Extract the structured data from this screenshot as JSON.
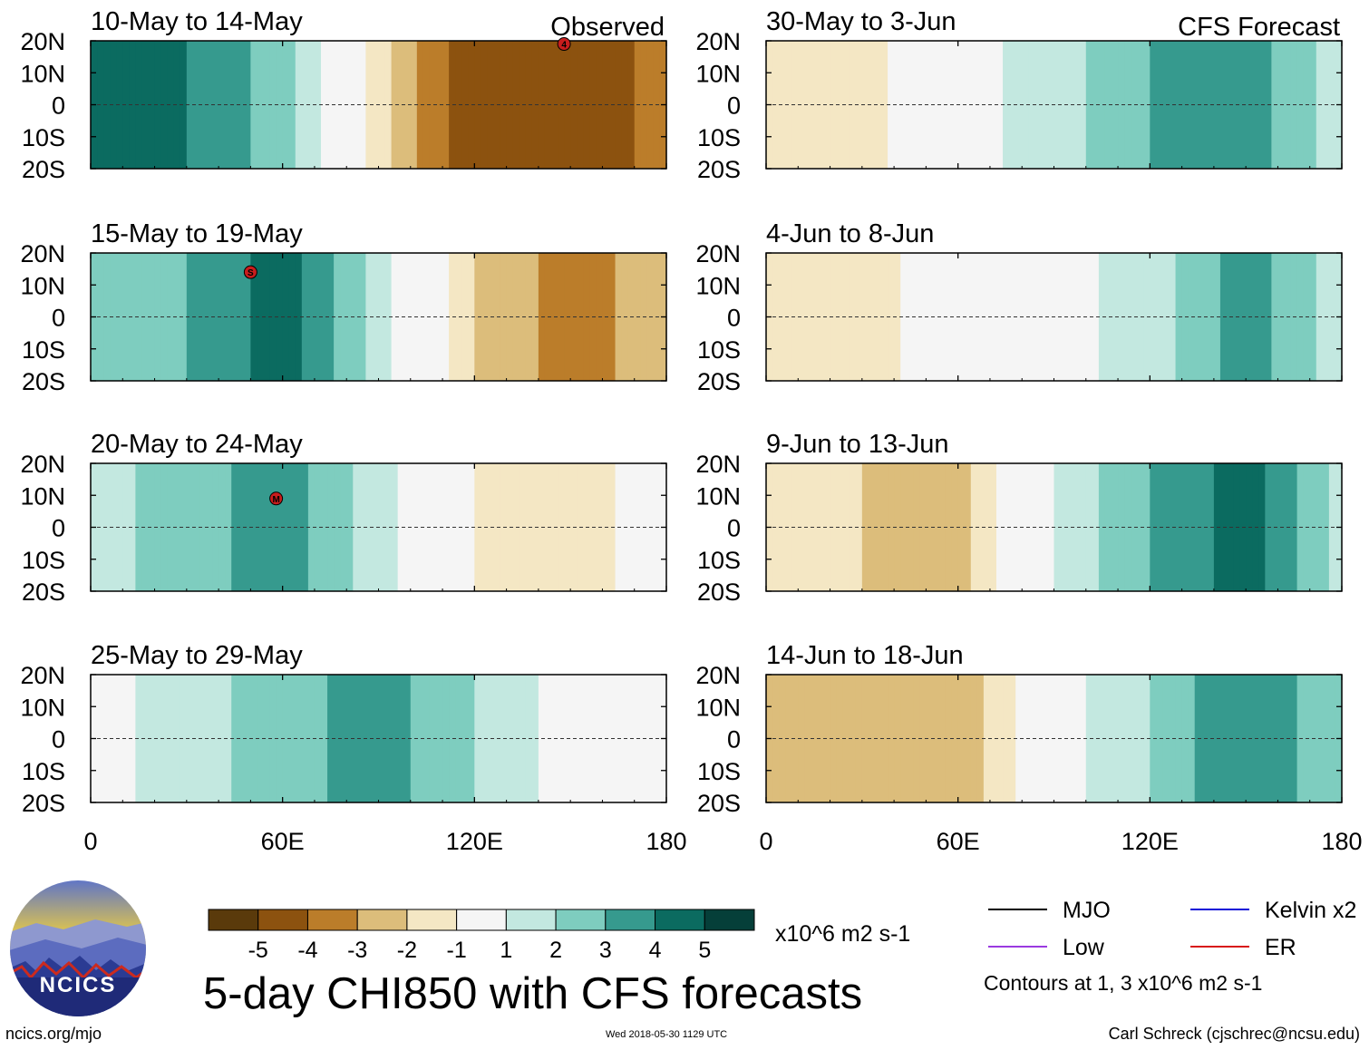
{
  "chart_data": {
    "type": "heatmap",
    "title": "5-day CHI850 with CFS forecasts",
    "variable": "CHI850 (850-hPa velocity potential) anomaly",
    "units": "x10^6 m2 s-1",
    "x_axis": {
      "range": [
        0,
        180
      ],
      "ticks": [
        0,
        60,
        120,
        180
      ],
      "tick_labels": [
        "0",
        "60E",
        "120E",
        "180"
      ]
    },
    "y_axis": {
      "range": [
        -20,
        20
      ],
      "ticks": [
        20,
        10,
        0,
        -10,
        -20
      ],
      "tick_labels": [
        "20N",
        "10N",
        "0",
        "10S",
        "20S"
      ]
    },
    "columns": [
      {
        "label": "Observed",
        "panels": [
          {
            "title": "10-May to 14-May",
            "anomaly": {
              "lon": [
                0,
                30,
                60,
                90,
                120,
                150,
                180
              ],
              "value": [
                4.5,
                4.0,
                2.5,
                -1.5,
                -5.0,
                -5.0,
                -3.5
              ]
            },
            "markers": [
              {
                "label": "4",
                "lon": 148,
                "lat": 19
              }
            ]
          },
          {
            "title": "15-May to 19-May",
            "anomaly": {
              "lon": [
                0,
                30,
                60,
                90,
                120,
                150,
                180
              ],
              "value": [
                2.0,
                3.0,
                4.5,
                1.5,
                -2.0,
                -3.5,
                -2.5
              ]
            },
            "markers": [
              {
                "label": "S",
                "lon": 50,
                "lat": 14
              }
            ]
          },
          {
            "title": "20-May to 24-May",
            "anomaly": {
              "lon": [
                0,
                30,
                60,
                90,
                120,
                150,
                180
              ],
              "value": [
                1.5,
                2.5,
                3.5,
                1.5,
                -1.0,
                -1.5,
                -0.5
              ]
            },
            "markers": [
              {
                "label": "M",
                "lon": 58,
                "lat": 9
              }
            ]
          },
          {
            "title": "25-May to 29-May",
            "anomaly": {
              "lon": [
                0,
                30,
                60,
                90,
                120,
                150,
                180
              ],
              "value": [
                0.5,
                1.5,
                2.5,
                3.5,
                2.0,
                0.5,
                -1.0
              ]
            },
            "markers": []
          }
        ]
      },
      {
        "label": "CFS Forecast",
        "panels": [
          {
            "title": "30-May to 3-Jun",
            "anomaly": {
              "lon": [
                0,
                30,
                60,
                90,
                120,
                150,
                180
              ],
              "value": [
                -2.0,
                -1.5,
                0.5,
                1.5,
                3.0,
                3.5,
                1.5
              ]
            },
            "markers": []
          },
          {
            "title": "4-Jun to 8-Jun",
            "anomaly": {
              "lon": [
                0,
                30,
                60,
                90,
                120,
                150,
                180
              ],
              "value": [
                -1.5,
                -2.0,
                0.5,
                0.5,
                1.5,
                3.5,
                1.5
              ]
            },
            "markers": []
          },
          {
            "title": "9-Jun to 13-Jun",
            "anomaly": {
              "lon": [
                0,
                30,
                60,
                90,
                120,
                150,
                180
              ],
              "value": [
                -2.0,
                -2.0,
                -2.5,
                1.0,
                3.0,
                4.5,
                1.5
              ]
            },
            "markers": []
          },
          {
            "title": "14-Jun to 18-Jun",
            "anomaly": {
              "lon": [
                0,
                30,
                60,
                90,
                120,
                150,
                180
              ],
              "value": [
                -2.0,
                -2.5,
                -3.0,
                0.5,
                2.0,
                4.0,
                2.0
              ]
            },
            "markers": []
          }
        ]
      }
    ],
    "colorbar": {
      "labels": [
        "-5",
        "-4",
        "-3",
        "-2",
        "-1",
        "1",
        "2",
        "3",
        "4",
        "5"
      ],
      "colors": [
        "#5a3a0b",
        "#8c520f",
        "#bb7d2a",
        "#dcbd7b",
        "#f4e7c4",
        "#f5f5f5",
        "#c3e8e0",
        "#7ecdbf",
        "#369a8e",
        "#0b6b60",
        "#053f39"
      ],
      "units": "x10^6 m2 s-1"
    },
    "legend": {
      "items": [
        {
          "label": "MJO",
          "color": "#000000"
        },
        {
          "label": "Kelvin x2",
          "color": "#1010d8"
        },
        {
          "label": "Low",
          "color": "#9a3ae0"
        },
        {
          "label": "ER",
          "color": "#d81818"
        }
      ],
      "note": "Contours at 1, 3 x10^6 m2 s-1"
    }
  },
  "footer": {
    "url": "ncics.org/mjo",
    "timestamp": "Wed 2018-05-30 1129 UTC",
    "credit": "Carl Schreck (cjschrec@ncsu.edu)"
  },
  "logo": {
    "text": "NCICS"
  }
}
